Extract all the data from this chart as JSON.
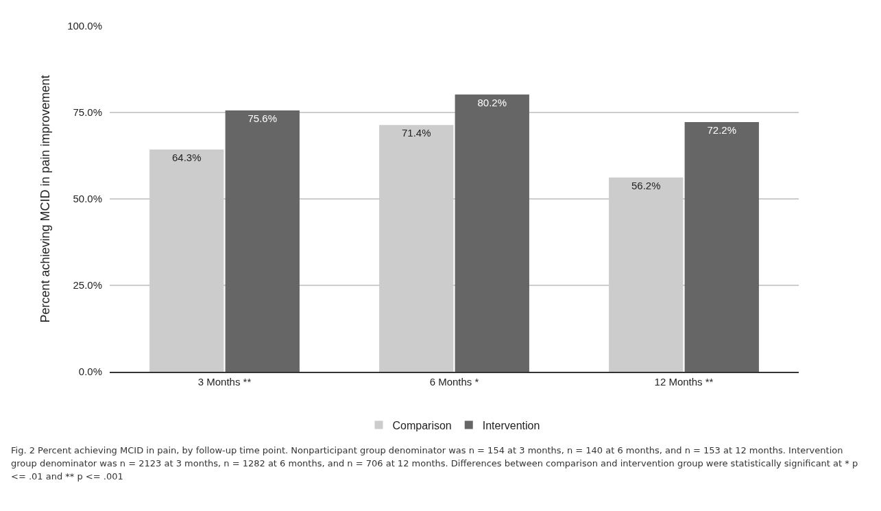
{
  "chart_data": {
    "type": "bar",
    "ylabel": "Percent achieving MCID in pain improvement",
    "categories": [
      "3 Months **",
      "6 Months *",
      "12 Months **"
    ],
    "series": [
      {
        "name": "Comparison",
        "color": "#cccccc",
        "values": [
          64.3,
          71.4,
          56.2
        ],
        "value_labels": [
          "64.3%",
          "71.4%",
          "56.2%"
        ]
      },
      {
        "name": "Intervention",
        "color": "#666666",
        "values": [
          75.6,
          80.2,
          72.2
        ],
        "value_labels": [
          "75.6%",
          "80.2%",
          "72.2%"
        ]
      }
    ],
    "ylim": [
      0,
      100
    ],
    "yticks": [
      {
        "value": 0,
        "label": "0.0%"
      },
      {
        "value": 25,
        "label": "25.0%"
      },
      {
        "value": 50,
        "label": "50.0%"
      },
      {
        "value": 75,
        "label": "75.0%"
      },
      {
        "value": 100,
        "label": "100.0%"
      }
    ],
    "grid": "y",
    "legend": "bottom",
    "annotations": [
      "Fig. 2 Percent achieving MCID in pain, by follow-up time point. Nonparticipant group denominator was n = 154 at 3 months, n = 140 at 6 months, and n = 153 at 12 months. Intervention group denominator was n = 2123 at 3 months, n = 1282 at 6 months, and n = 706 at 12 months. Differences between comparison and intervention group were statistically significant at * p <= .01 and ** p <= .001"
    ]
  }
}
